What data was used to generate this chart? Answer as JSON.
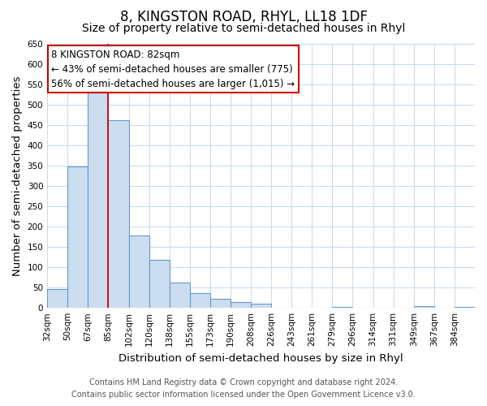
{
  "title": "8, KINGSTON ROAD, RHYL, LL18 1DF",
  "subtitle": "Size of property relative to semi-detached houses in Rhyl",
  "xlabel": "Distribution of semi-detached houses by size in Rhyl",
  "ylabel": "Number of semi-detached properties",
  "bin_labels": [
    "32sqm",
    "50sqm",
    "67sqm",
    "85sqm",
    "102sqm",
    "120sqm",
    "138sqm",
    "155sqm",
    "173sqm",
    "190sqm",
    "208sqm",
    "226sqm",
    "243sqm",
    "261sqm",
    "279sqm",
    "296sqm",
    "314sqm",
    "331sqm",
    "349sqm",
    "367sqm",
    "384sqm"
  ],
  "bar_values": [
    47,
    348,
    535,
    463,
    178,
    118,
    62,
    36,
    22,
    15,
    10,
    1,
    0,
    0,
    3,
    0,
    0,
    0,
    5,
    0,
    3
  ],
  "bar_color": "#ccddf0",
  "bar_edge_color": "#6699cc",
  "property_line_idx": 3,
  "property_line_color": "#cc0000",
  "annotation_title": "8 KINGSTON ROAD: 82sqm",
  "annotation_line1": "← 43% of semi-detached houses are smaller (775)",
  "annotation_line2": "56% of semi-detached houses are larger (1,015) →",
  "annotation_box_color": "#ffffff",
  "annotation_box_edge": "#cc0000",
  "ylim": [
    0,
    650
  ],
  "yticks": [
    0,
    50,
    100,
    150,
    200,
    250,
    300,
    350,
    400,
    450,
    500,
    550,
    600,
    650
  ],
  "footer_line1": "Contains HM Land Registry data © Crown copyright and database right 2024.",
  "footer_line2": "Contains public sector information licensed under the Open Government Licence v3.0.",
  "bg_color": "#ffffff",
  "grid_color": "#c8d8ea",
  "title_fontsize": 12,
  "subtitle_fontsize": 10,
  "axis_label_fontsize": 9.5,
  "tick_fontsize": 7.5,
  "annotation_fontsize": 8.5,
  "footer_fontsize": 7
}
